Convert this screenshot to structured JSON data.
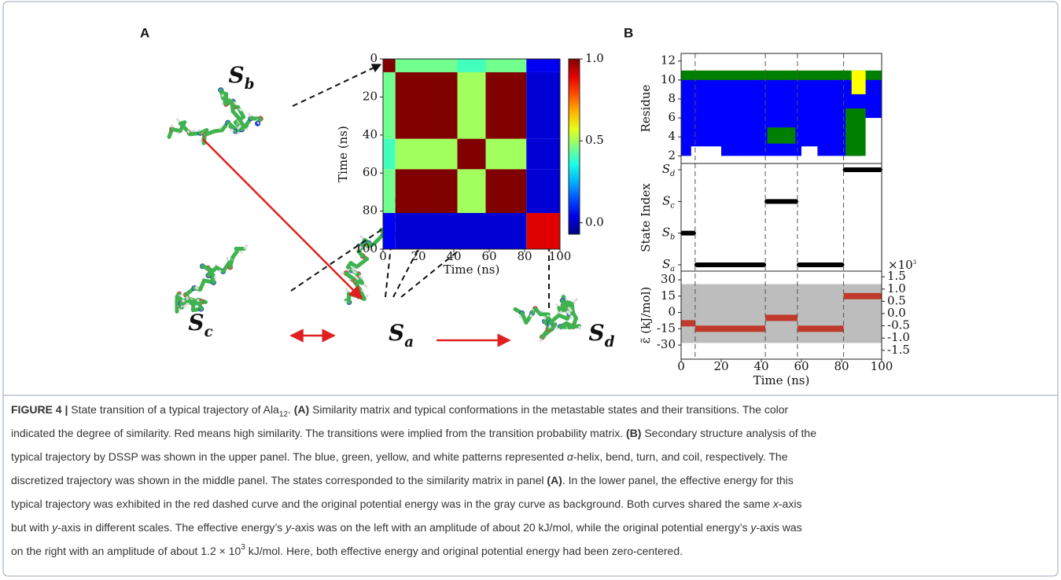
{
  "panel_a": {
    "label": "A",
    "heatmap": {
      "xlim": [
        0,
        100
      ],
      "ylim": [
        0,
        100
      ],
      "xticks": [
        0,
        20,
        40,
        60,
        80,
        100
      ],
      "yticks": [
        0,
        20,
        40,
        60,
        80,
        100
      ],
      "xlabel": "Time (ns)",
      "ylabel": "Time (ns)",
      "similarity": [
        [
          1.0,
          0.45,
          0.5,
          0.02
        ],
        [
          0.45,
          1.0,
          0.4,
          0.05
        ],
        [
          0.5,
          0.4,
          1.0,
          0.02
        ],
        [
          0.02,
          0.05,
          0.02,
          0.9
        ]
      ],
      "colorbar": {
        "lim": [
          -0.07,
          1.0
        ],
        "ticks": [
          {
            "value": 0,
            "label": "0.0"
          },
          {
            "value": 0.5,
            "label": "0.5"
          },
          {
            "value": 1,
            "label": "1.0"
          }
        ]
      }
    }
  },
  "panel_b": {
    "label": "B",
    "xlim": [
      0,
      100
    ],
    "xticks": [
      0,
      20,
      40,
      60,
      80,
      100
    ],
    "xlabel": "Time (ns)",
    "residue": {
      "ylabel": "Residue",
      "ylim": [
        1.2,
        12.8
      ],
      "yticks": [
        2,
        4,
        6,
        8,
        10,
        12
      ],
      "colors": {
        "helix": "#0000ff",
        "bend": "#008000",
        "turn": "#ffff00",
        "coil": "#ffffff"
      },
      "regions": [
        {
          "kind": "helix",
          "t": [
            0,
            100
          ],
          "res": [
            2,
            10.6
          ]
        },
        {
          "kind": "bend",
          "t": [
            0,
            100
          ],
          "res": [
            10,
            11
          ]
        },
        {
          "kind": "coil",
          "t": [
            5,
            20
          ],
          "res": [
            1.2,
            3
          ]
        },
        {
          "kind": "coil",
          "t": [
            60,
            68
          ],
          "res": [
            1.2,
            3
          ]
        },
        {
          "kind": "coil",
          "t": [
            90,
            100
          ],
          "res": [
            1.2,
            6
          ]
        },
        {
          "kind": "bend",
          "t": [
            43,
            57
          ],
          "res": [
            3.3,
            5
          ]
        },
        {
          "kind": "bend",
          "t": [
            82,
            92
          ],
          "res": [
            2,
            7
          ]
        },
        {
          "kind": "turn",
          "t": [
            85,
            92
          ],
          "res": [
            8.5,
            11
          ]
        }
      ]
    },
    "state": {
      "ylabel": "State Index",
      "ylim": [
        -0.2,
        3.2
      ],
      "yticks": [
        0,
        1,
        2,
        3
      ]
    },
    "energy": {
      "ylabel": "ε̃ (kJ/mol)",
      "ylim": [
        -43,
        38
      ],
      "yticks": [
        -30,
        -15,
        0,
        15,
        30
      ],
      "y2lim": [
        -1.86,
        1.73
      ],
      "y2ticks": [
        {
          "value": -1.5,
          "label": "-1.5"
        },
        {
          "value": -1,
          "label": "-1.0"
        },
        {
          "value": -0.5,
          "label": "-0.5"
        },
        {
          "value": 0,
          "label": "0.0"
        },
        0.5,
        {
          "value": 1,
          "label": "1.0"
        },
        1.5
      ],
      "y2_scale": {
        "base": "×10",
        "exp": "3"
      },
      "color": "#c0392b",
      "background_color": "#bdbdbd",
      "background_range": [
        -1.2,
        1.2
      ]
    }
  },
  "states": [
    {
      "main": "S",
      "sub": "a"
    },
    {
      "main": "S",
      "sub": "b"
    },
    {
      "main": "S",
      "sub": "c"
    },
    {
      "main": "S",
      "sub": "d"
    }
  ],
  "segments": [
    {
      "state": 1,
      "start": 0,
      "end": 7,
      "energy": -10
    },
    {
      "state": 0,
      "start": 7,
      "end": 42,
      "energy": -15
    },
    {
      "state": 2,
      "start": 42,
      "end": 58,
      "energy": -5
    },
    {
      "state": 0,
      "start": 58,
      "end": 81,
      "energy": -15
    },
    {
      "state": 3,
      "start": 81,
      "end": 100,
      "energy": 15
    }
  ],
  "caption": [
    [
      {
        "t": "FIGURE 4 |",
        "style": "bold"
      },
      {
        "t": " State transition of a typical trajectory of Ala"
      },
      {
        "t": "12",
        "style": "sub"
      },
      {
        "t": ". "
      },
      {
        "t": "(A)",
        "style": "bold"
      },
      {
        "t": " Similarity matrix and typical conformations in the metastable states and their transitions. The color"
      }
    ],
    [
      {
        "t": "indicated the degree of similarity. Red means high similarity. The transitions were implied from the transition probability matrix. "
      },
      {
        "t": "(B)",
        "style": "bold"
      },
      {
        "t": " Secondary structure analysis of the"
      }
    ],
    [
      {
        "t": "typical trajectory by DSSP was shown in the upper panel. The blue, green, yellow, and white patterns represented "
      },
      {
        "t": "α",
        "style": "italic"
      },
      {
        "t": "-helix, bend, turn, and coil, respectively. The"
      }
    ],
    [
      {
        "t": "discretized trajectory was shown in the middle panel. The states corresponded to the similarity matrix in panel "
      },
      {
        "t": "(A)",
        "style": "bold"
      },
      {
        "t": ". In the lower panel, the effective energy for this"
      }
    ],
    [
      {
        "t": "typical trajectory was exhibited in the red dashed curve and the original potential energy was in the gray curve as background. Both curves shared the same "
      },
      {
        "t": "x",
        "style": "italic"
      },
      {
        "t": "-axis"
      }
    ],
    [
      {
        "t": "but with "
      },
      {
        "t": "y",
        "style": "italic"
      },
      {
        "t": "-axis in different scales. The effective energy’s "
      },
      {
        "t": "y",
        "style": "italic"
      },
      {
        "t": "-axis was on the left with an amplitude of about 20 kJ/mol, while the original potential energy’s "
      },
      {
        "t": "y",
        "style": "italic"
      },
      {
        "t": "-axis was"
      }
    ],
    [
      {
        "t": "on the right with an amplitude of about 1.2 × 10"
      },
      {
        "t": "3",
        "style": "sup"
      },
      {
        "t": " kJ/mol. Here, both effective energy and original potential energy had been zero-centered."
      }
    ]
  ]
}
